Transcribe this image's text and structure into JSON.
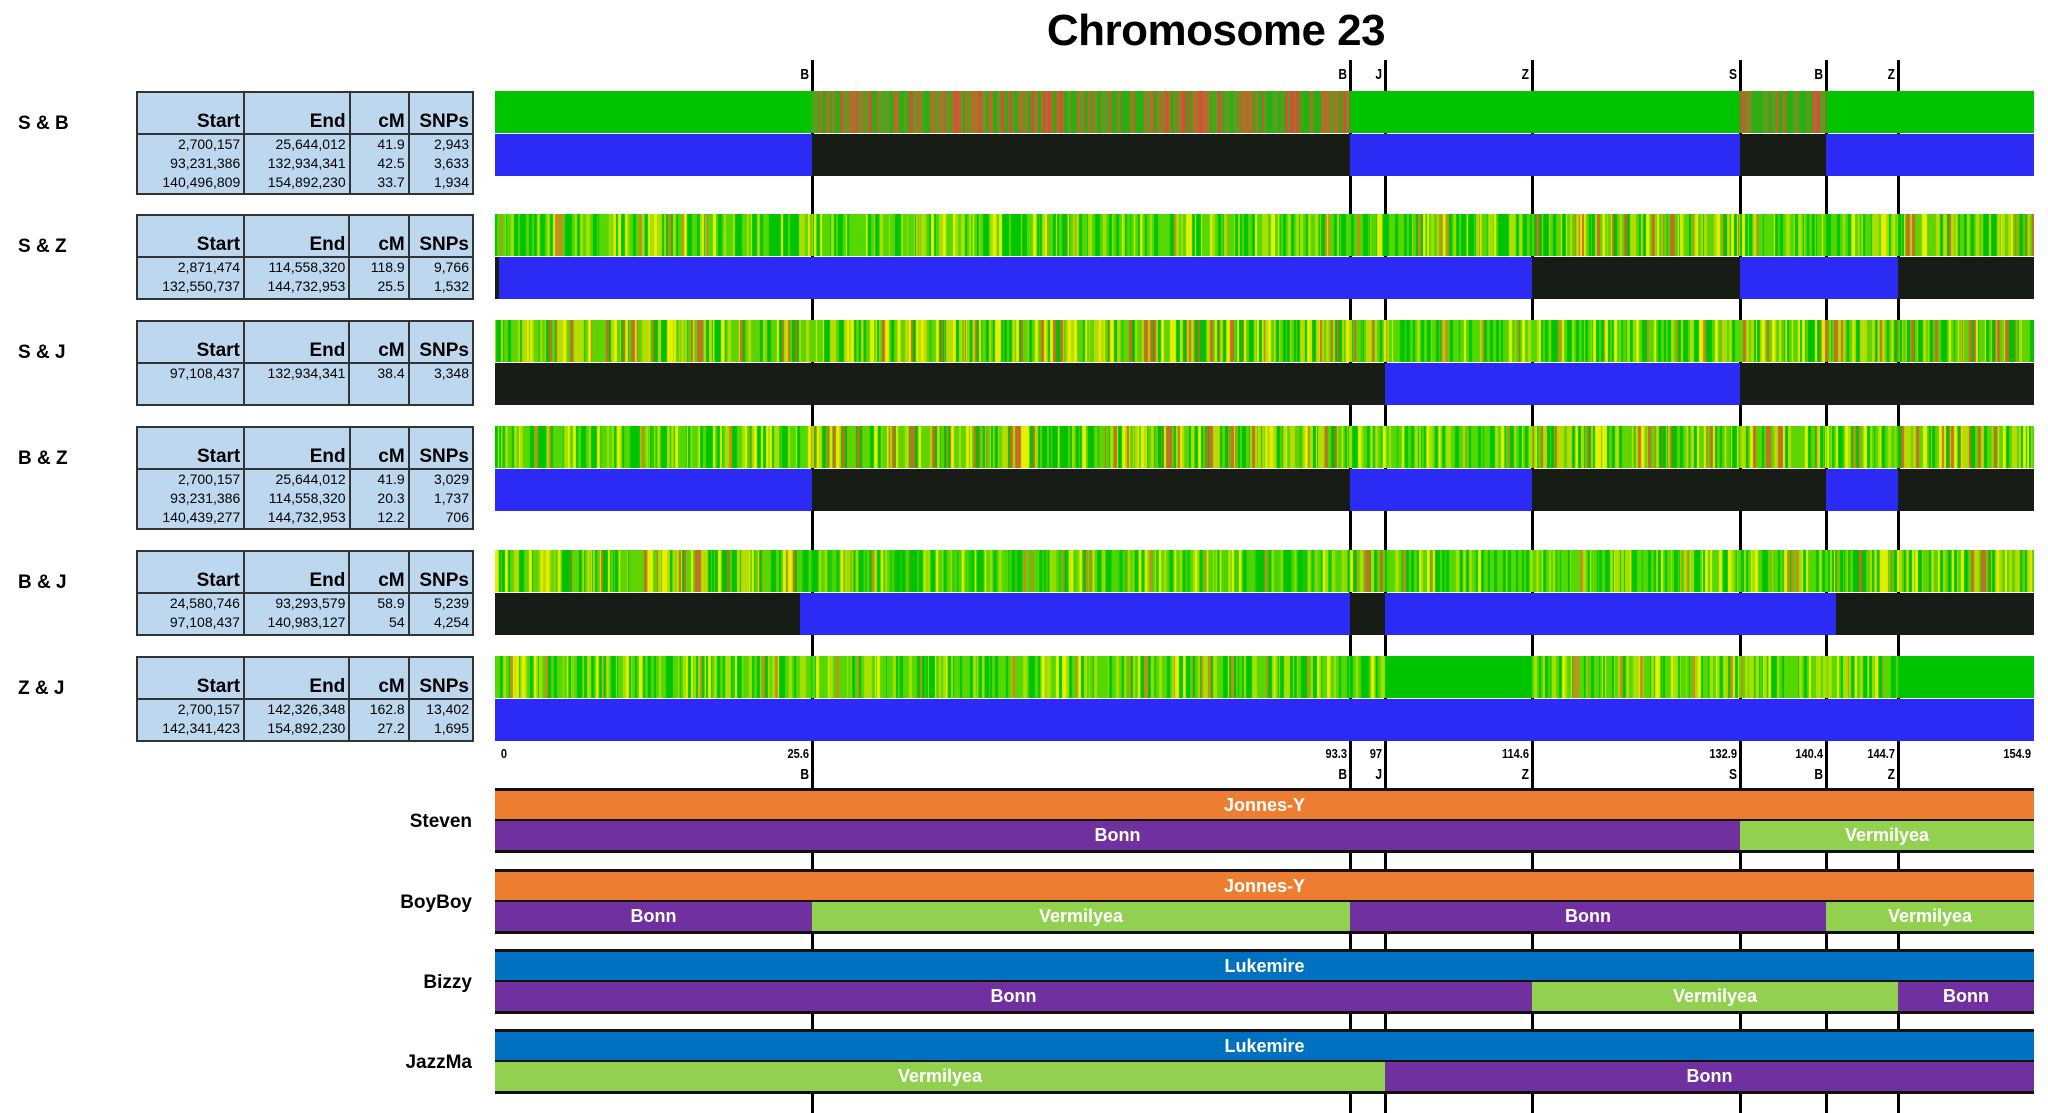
{
  "chart_data": {
    "type": "table",
    "title": "Chromosome 23",
    "axis_ticks": [
      0,
      25.6,
      93.3,
      97,
      114.6,
      132.9,
      140.4,
      144.7,
      154.9
    ],
    "axis_tick_labels": [
      "0",
      "25.6",
      "93.3",
      "97",
      "114.6",
      "132.9",
      "140.4",
      "144.7",
      "154.9"
    ],
    "markers": [
      {
        "value": 25.6,
        "label": "B"
      },
      {
        "value": 93.3,
        "label": "B"
      },
      {
        "value": 97,
        "label": "J"
      },
      {
        "value": 114.6,
        "label": "Z"
      },
      {
        "value": 132.9,
        "label": "S"
      },
      {
        "value": 140.4,
        "label": "B"
      },
      {
        "value": 144.7,
        "label": "Z"
      }
    ],
    "colors": {
      "match": "#2b2bf5",
      "no_match": "#181c16",
      "solid_green": "#00c400",
      "Jonnes-Y": "#ed7d31",
      "Bonn": "#7030a0",
      "Vermilyea": "#92d050",
      "Lukemire": "#0070c0"
    },
    "table_headers": [
      "Start",
      "End",
      "cM",
      "SNPs"
    ],
    "pairs": [
      {
        "label": "S & B",
        "rows": [
          [
            "2,700,157",
            "25,644,012",
            "41.9",
            "2,943"
          ],
          [
            "93,231,386",
            "132,934,341",
            "42.5",
            "3,633"
          ],
          [
            "140,496,809",
            "154,892,230",
            "33.7",
            "1,934"
          ]
        ],
        "match": [
          [
            0,
            25.6,
            "match"
          ],
          [
            25.6,
            93.3,
            "no_match"
          ],
          [
            93.3,
            132.9,
            "match"
          ],
          [
            132.9,
            140.4,
            "no_match"
          ],
          [
            140.4,
            154.9,
            "match"
          ]
        ],
        "top": [
          [
            0,
            25.6,
            "solid"
          ],
          [
            25.6,
            93.3,
            "diff"
          ],
          [
            93.3,
            132.9,
            "solid"
          ],
          [
            132.9,
            140.4,
            "diff"
          ],
          [
            140.4,
            154.9,
            "solid"
          ]
        ]
      },
      {
        "label": "S & Z",
        "rows": [
          [
            "2,871,474",
            "114,558,320",
            "118.9",
            "9,766"
          ],
          [
            "132,550,737",
            "144,732,953",
            "25.5",
            "1,532"
          ]
        ],
        "match": [
          [
            0,
            0.3,
            "no_match"
          ],
          [
            0.3,
            114.6,
            "match"
          ],
          [
            114.6,
            132.9,
            "no_match"
          ],
          [
            132.9,
            144.7,
            "match"
          ],
          [
            144.7,
            154.9,
            "no_match"
          ]
        ],
        "top": [
          [
            0,
            114.6,
            "mixed"
          ],
          [
            114.6,
            132.9,
            "mixed_red"
          ],
          [
            132.9,
            144.7,
            "mixed"
          ],
          [
            144.7,
            154.9,
            "mixed_red"
          ]
        ]
      },
      {
        "label": "S & J",
        "rows": [
          [
            "97,108,437",
            "132,934,341",
            "38.4",
            "3,348"
          ]
        ],
        "match": [
          [
            0,
            97,
            "no_match"
          ],
          [
            97,
            132.9,
            "match"
          ],
          [
            132.9,
            154.9,
            "no_match"
          ]
        ],
        "top": [
          [
            0,
            97,
            "mixed_red"
          ],
          [
            97,
            132.9,
            "mixed"
          ],
          [
            132.9,
            154.9,
            "mixed_red"
          ]
        ]
      },
      {
        "label": "B & Z",
        "rows": [
          [
            "2,700,157",
            "25,644,012",
            "41.9",
            "3,029"
          ],
          [
            "93,231,386",
            "114,558,320",
            "20.3",
            "1,737"
          ],
          [
            "140,439,277",
            "144,732,953",
            "12.2",
            "706"
          ]
        ],
        "match": [
          [
            0,
            25.6,
            "match"
          ],
          [
            25.6,
            93.3,
            "no_match"
          ],
          [
            93.3,
            114.6,
            "match"
          ],
          [
            114.6,
            140.4,
            "no_match"
          ],
          [
            140.4,
            144.7,
            "match"
          ],
          [
            144.7,
            154.9,
            "no_match"
          ]
        ],
        "top": [
          [
            0,
            25.6,
            "mixed"
          ],
          [
            25.6,
            93.3,
            "mixed_red"
          ],
          [
            93.3,
            114.6,
            "mixed"
          ],
          [
            114.6,
            140.4,
            "mixed_red"
          ],
          [
            140.4,
            144.7,
            "mixed"
          ],
          [
            144.7,
            154.9,
            "mixed_red"
          ]
        ]
      },
      {
        "label": "B & J",
        "rows": [
          [
            "24,580,746",
            "93,293,579",
            "58.9",
            "5,239"
          ],
          [
            "97,108,437",
            "140,983,127",
            "54",
            "4,254"
          ]
        ],
        "match": [
          [
            0,
            24.6,
            "no_match"
          ],
          [
            24.6,
            93.3,
            "match"
          ],
          [
            93.3,
            97,
            "no_match"
          ],
          [
            97,
            141,
            "match"
          ],
          [
            141,
            154.9,
            "no_match"
          ]
        ],
        "top": [
          [
            0,
            24.6,
            "mixed_red"
          ],
          [
            24.6,
            93.3,
            "mixed"
          ],
          [
            93.3,
            97,
            "mixed_red"
          ],
          [
            97,
            141,
            "mixed"
          ],
          [
            141,
            154.9,
            "mixed_red"
          ]
        ]
      },
      {
        "label": "Z & J",
        "rows": [
          [
            "2,700,157",
            "142,326,348",
            "162.8",
            "13,402"
          ],
          [
            "142,341,423",
            "154,892,230",
            "27.2",
            "1,695"
          ]
        ],
        "match": [
          [
            0,
            142.3,
            "match"
          ],
          [
            142.3,
            154.9,
            "match"
          ]
        ],
        "top": [
          [
            0,
            97,
            "mixed"
          ],
          [
            97,
            114.6,
            "solid"
          ],
          [
            114.6,
            144.7,
            "mixed"
          ],
          [
            144.7,
            154.9,
            "solid"
          ]
        ]
      }
    ],
    "family": [
      {
        "name": "Steven",
        "paternal": [
          [
            0,
            154.9,
            "Jonnes-Y"
          ]
        ],
        "maternal": [
          [
            0,
            132.9,
            "Bonn"
          ],
          [
            132.9,
            154.9,
            "Vermilyea"
          ]
        ]
      },
      {
        "name": "BoyBoy",
        "paternal": [
          [
            0,
            154.9,
            "Jonnes-Y"
          ]
        ],
        "maternal": [
          [
            0,
            25.6,
            "Bonn"
          ],
          [
            25.6,
            93.3,
            "Vermilyea"
          ],
          [
            93.3,
            140.4,
            "Bonn"
          ],
          [
            140.4,
            154.9,
            "Vermilyea"
          ]
        ]
      },
      {
        "name": "Bizzy",
        "paternal": [
          [
            0,
            154.9,
            "Lukemire"
          ]
        ],
        "maternal": [
          [
            0,
            114.6,
            "Bonn"
          ],
          [
            114.6,
            144.7,
            "Vermilyea"
          ],
          [
            144.7,
            154.9,
            "Bonn"
          ]
        ]
      },
      {
        "name": "JazzMa",
        "paternal": [
          [
            0,
            154.9,
            "Lukemire"
          ]
        ],
        "maternal": [
          [
            0,
            97,
            "Vermilyea"
          ],
          [
            97,
            154.9,
            "Bonn"
          ]
        ]
      }
    ]
  }
}
